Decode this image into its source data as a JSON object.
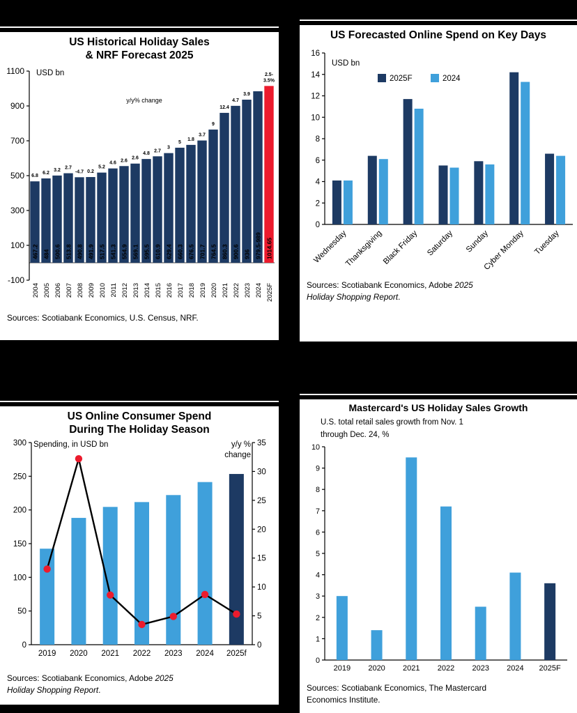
{
  "colors": {
    "background": "#000000",
    "panel": "#FFFFFF",
    "navy": "#1D3A63",
    "light_blue": "#3FA0DB",
    "red": "#EC1B2D",
    "line": "#000000"
  },
  "chart_data": [
    {
      "id": "us-historical-holiday-sales",
      "type": "bar",
      "title_lines": [
        "US Historical Holiday Sales",
        "& NRF Forecast 2025"
      ],
      "axis_unit": "USD bn",
      "annotation": "y/y% change",
      "ylim": [
        -100,
        1100
      ],
      "yticks": [
        -100,
        100,
        300,
        500,
        700,
        900,
        1100
      ],
      "categories": [
        "2004",
        "2005",
        "2006",
        "2007",
        "2008",
        "2009",
        "2010",
        "2011",
        "2012",
        "2013",
        "2014",
        "2015",
        "2016",
        "2017",
        "2018",
        "2019",
        "2020",
        "2021",
        "2022",
        "2023",
        "2024",
        "2025F"
      ],
      "values": [
        467.2,
        484,
        500.6,
        513.8,
        490.8,
        491.9,
        517.5,
        541.3,
        554.9,
        569.1,
        595.5,
        610.9,
        629.4,
        660.3,
        676.5,
        701.7,
        764.5,
        860.3,
        900.6,
        936,
        984.3,
        1014.65
      ],
      "bar_labels": [
        "467.2",
        "484",
        "500.6",
        "513.8",
        "490.8",
        "491.9",
        "517.5",
        "541.3",
        "554.9",
        "569.1",
        "595.5",
        "610.9",
        "629.4",
        "660.3",
        "676.5",
        "701.7",
        "764.5",
        "860.3",
        "900.6",
        "936",
        "979.5-989",
        "1014.65"
      ],
      "growth_labels": [
        "6.8",
        "6.2",
        "3.2",
        "2.7",
        "-4.7",
        "0.2",
        "5.2",
        "4.6",
        "2.6",
        "2.6",
        "4.8",
        "2.7",
        "3",
        "5",
        "1.8",
        "3.7",
        "9",
        "12.4",
        "4.7",
        "3.9",
        "",
        "2.5-|3.5%"
      ],
      "highlight_last_color": "red",
      "source": "Sources: Scotiabank Economics, U.S. Census, NRF."
    },
    {
      "id": "us-forecasted-online-spend-key-days",
      "type": "grouped-bar",
      "title": "US Forecasted Online Spend on Key Days",
      "axis_unit": "USD bn",
      "ylim": [
        0,
        16
      ],
      "yticks": [
        0,
        2,
        4,
        6,
        8,
        10,
        12,
        14,
        16
      ],
      "categories": [
        "Wednesday",
        "Thanksgiving",
        "Black Friday",
        "Saturday",
        "Sunday",
        "Cyber Monday",
        "Tuesday"
      ],
      "series": [
        {
          "name": "2025F",
          "values": [
            4.1,
            6.4,
            11.7,
            5.5,
            5.9,
            14.2,
            6.6
          ]
        },
        {
          "name": "2024",
          "values": [
            4.1,
            6.1,
            10.8,
            5.3,
            5.6,
            13.3,
            6.4
          ]
        }
      ],
      "legend_position": "top-left-inside",
      "source": {
        "normal1": "Sources: Scotiabank Economics, Adobe ",
        "italic1": "2025",
        "italic2": "Holiday Shopping Report",
        "suffix": "."
      }
    },
    {
      "id": "us-online-consumer-spend-holiday-season",
      "type": "bar+line",
      "title_lines": [
        "US Online Consumer Spend",
        "During The Holiday Season"
      ],
      "left_axis_label": "Spending, in USD bn",
      "right_axis_label_lines": [
        "y/y %",
        "change"
      ],
      "left_ylim": [
        0,
        300
      ],
      "left_yticks": [
        0,
        50,
        100,
        150,
        200,
        250,
        300
      ],
      "right_ylim": [
        0,
        35
      ],
      "right_yticks": [
        0,
        5,
        10,
        15,
        20,
        25,
        30,
        35
      ],
      "categories": [
        "2019",
        "2020",
        "2021",
        "2022",
        "2023",
        "2024",
        "2025f"
      ],
      "bar_values": [
        142.5,
        188.2,
        204.5,
        211.7,
        222.1,
        241.4,
        253.4
      ],
      "line_values": [
        13.1,
        32.2,
        8.6,
        3.5,
        4.9,
        8.7,
        5.3
      ],
      "source": {
        "normal1": "Sources: Scotiabank Economics, Adobe ",
        "italic1": "2025",
        "italic2": "Holiday Shopping Report",
        "suffix": "."
      }
    },
    {
      "id": "mastercard-us-holiday-sales-growth",
      "type": "bar",
      "title": "Mastercard's US Holiday Sales Growth",
      "subtitle_lines": [
        "U.S. total retail sales growth from Nov. 1",
        "through Dec. 24, %"
      ],
      "ylim": [
        0,
        10
      ],
      "yticks": [
        0,
        1,
        2,
        3,
        4,
        5,
        6,
        7,
        8,
        9,
        10
      ],
      "categories": [
        "2019",
        "2020",
        "2021",
        "2022",
        "2023",
        "2024",
        "2025F"
      ],
      "values": [
        3.0,
        1.4,
        9.5,
        7.2,
        2.5,
        4.1,
        3.6
      ],
      "source_lines": [
        "Sources: Scotiabank Economics, The Mastercard",
        "Economics Institute."
      ]
    }
  ]
}
